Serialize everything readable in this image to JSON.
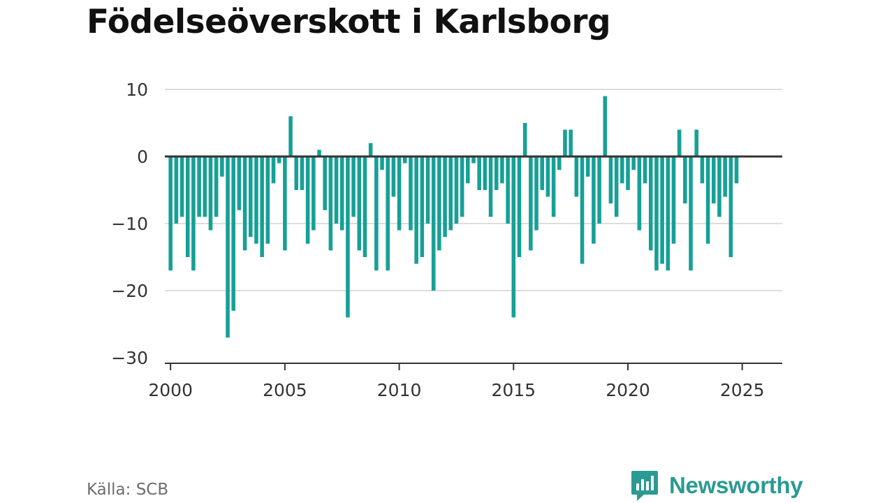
{
  "title": "Födelseöverskott i Karlsborg",
  "source": "Källa: SCB",
  "brand": {
    "name": "Newsworthy",
    "color": "#2a9a92"
  },
  "colors": {
    "bar": "#16a096",
    "grid": "#dddddd",
    "zero": "#333333",
    "axis": "#333333",
    "text": "#333333"
  },
  "chart_data": {
    "type": "bar",
    "title": "Födelseöverskott i Karlsborg",
    "xlabel": "",
    "ylabel": "",
    "ylim": [
      -30,
      10
    ],
    "yticks": [
      10,
      0,
      -10,
      -20,
      -30
    ],
    "ytick_labels": [
      "10",
      "0",
      "−10",
      "−20",
      "−30"
    ],
    "xlim": [
      1999.75,
      2026.75
    ],
    "xticks": [
      2000,
      2005,
      2010,
      2015,
      2020,
      2025
    ],
    "xtick_labels": [
      "2000",
      "2005",
      "2010",
      "2015",
      "2020",
      "2025"
    ],
    "grid": true,
    "frequency": "quarterly",
    "x_start": 2000.0,
    "values": [
      -17,
      -10,
      -9,
      -15,
      -17,
      -9,
      -9,
      -11,
      -9,
      -3,
      -27,
      -23,
      -8,
      -14,
      -12,
      -13,
      -15,
      -13,
      -4,
      -1,
      -14,
      6,
      -5,
      -5,
      -13,
      -11,
      1,
      -8,
      -14,
      -10,
      -11,
      -24,
      -9,
      -14,
      -15,
      2,
      -17,
      -2,
      -17,
      -6,
      -11,
      -1,
      -11,
      -16,
      -15,
      -10,
      -20,
      -14,
      -12,
      -11,
      -10,
      -9,
      -4,
      -1,
      -5,
      -5,
      -9,
      -5,
      -4,
      -10,
      -24,
      -15,
      5,
      -14,
      -11,
      -5,
      -6,
      -9,
      -2,
      4,
      4,
      -6,
      -16,
      -3,
      -13,
      -10,
      9,
      -7,
      -9,
      -4,
      -5,
      -2,
      -11,
      -4,
      -14,
      -17,
      -16,
      -17,
      -13,
      4,
      -7,
      -17,
      4,
      -4,
      -13,
      -7,
      -9,
      -6,
      -15,
      -4
    ]
  }
}
